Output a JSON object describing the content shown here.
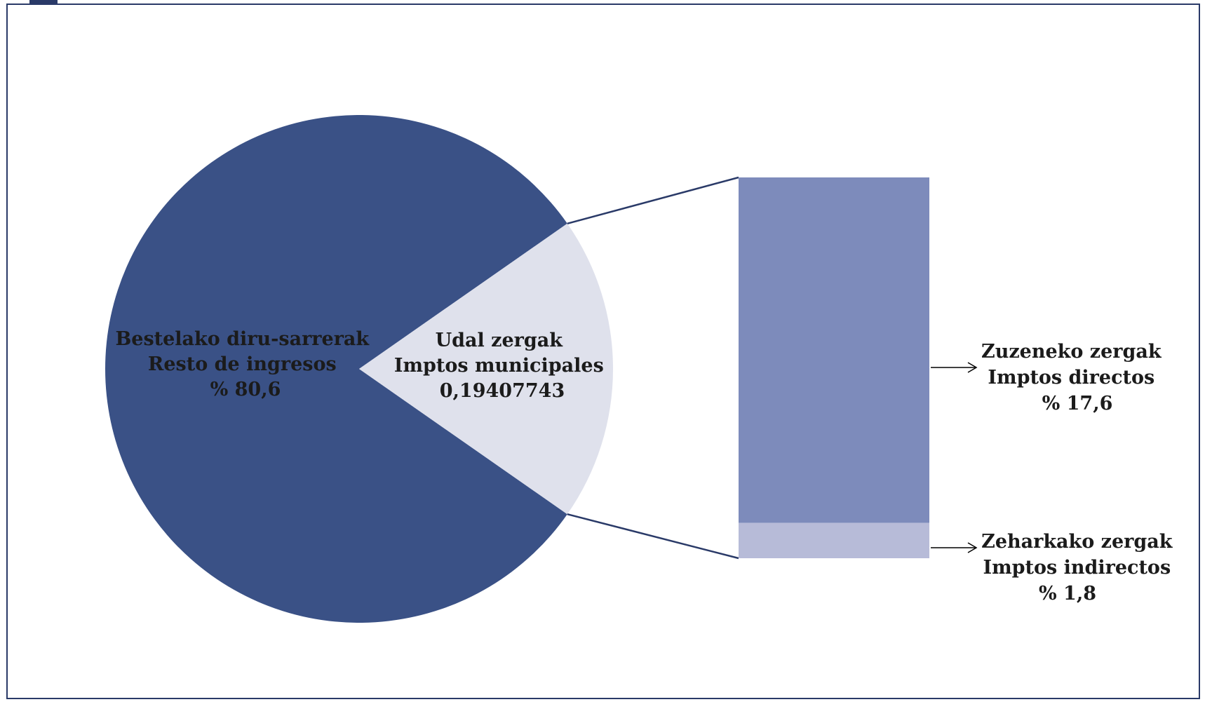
{
  "chart_data": {
    "type": "bar-of-pie",
    "title": "",
    "colors": {
      "pie_main": "#3a5186",
      "pie_highlight": "#dfe1ec",
      "bar_direct": "#7d8bbb",
      "bar_indirect": "#b7bbd8",
      "connector": "#2a3a68",
      "frame": "#2a3a68"
    },
    "pie": {
      "slices": [
        {
          "key": "other",
          "value": 80.6,
          "label_lines": [
            "Bestelako diru-sarrerak",
            "Resto de ingresos",
            "% 80,6"
          ]
        },
        {
          "key": "municipal",
          "value": 19.4,
          "label_lines": [
            "Udal zergak",
            "Imptos municipales",
            "0,19407743"
          ]
        }
      ]
    },
    "bar": {
      "segments": [
        {
          "key": "direct",
          "value": 17.6,
          "label_lines": [
            "Zuzeneko zergak",
            "Imptos directos",
            "% 17,6"
          ]
        },
        {
          "key": "indirect",
          "value": 1.8,
          "label_lines": [
            "Zeharkako zergak",
            "Imptos indirectos",
            "% 1,8"
          ]
        }
      ]
    }
  }
}
